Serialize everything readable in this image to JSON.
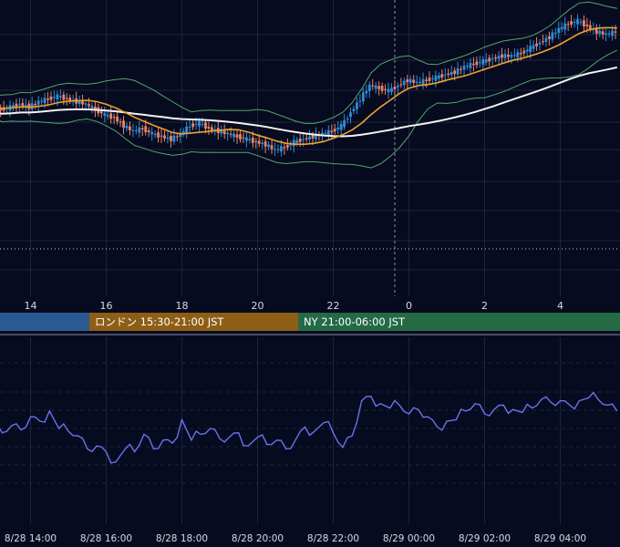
{
  "colors": {
    "background": "#070b1f",
    "grid": "#1d2340",
    "candle_up": "#2f8cd8",
    "candle_down": "#e8836a",
    "bb_band": "#4fa76a",
    "ma_short": "#f0a030",
    "ma_long": "#f2f2f2",
    "rsi_line": "#6a72ee",
    "session_tokyo": "#2b5a91",
    "session_london": "#8d5e16",
    "session_ny": "#246a45",
    "axis_text": "#d6d9e6"
  },
  "sessions": {
    "tokyo": {
      "label": ""
    },
    "london": {
      "label": "ロンドン 15:30-21:00 JST"
    },
    "ny": {
      "label": "NY 21:00-06:00 JST"
    }
  },
  "chart_data": [
    {
      "type": "candlestick",
      "title": "",
      "x_ticks": [
        "14",
        "16",
        "18",
        "20",
        "22",
        "0",
        "2",
        "4"
      ],
      "x_range_hours": [
        "13:00",
        "05:30"
      ],
      "y_range": [
        0,
        100
      ],
      "grid": true,
      "series": [
        {
          "kind": "bollinger_band"
        },
        {
          "kind": "moving_average_short"
        },
        {
          "kind": "moving_average_long"
        }
      ],
      "close": [
        [
          13.0,
          67
        ],
        [
          13.25,
          66
        ],
        [
          13.5,
          67
        ],
        [
          13.75,
          68
        ],
        [
          14.0,
          67
        ],
        [
          14.25,
          69
        ],
        [
          14.5,
          70
        ],
        [
          14.75,
          71
        ],
        [
          15.0,
          70
        ],
        [
          15.25,
          69
        ],
        [
          15.5,
          68
        ],
        [
          15.75,
          66
        ],
        [
          16.0,
          64
        ],
        [
          16.25,
          63
        ],
        [
          16.5,
          60
        ],
        [
          16.75,
          58
        ],
        [
          17.0,
          59
        ],
        [
          17.25,
          57
        ],
        [
          17.5,
          56
        ],
        [
          17.75,
          55
        ],
        [
          18.0,
          57
        ],
        [
          18.25,
          60
        ],
        [
          18.5,
          61
        ],
        [
          18.75,
          59
        ],
        [
          19.0,
          58
        ],
        [
          19.25,
          57
        ],
        [
          19.5,
          56
        ],
        [
          19.75,
          55
        ],
        [
          20.0,
          54
        ],
        [
          20.25,
          53
        ],
        [
          20.5,
          51
        ],
        [
          20.75,
          52
        ],
        [
          21.0,
          54
        ],
        [
          21.25,
          55
        ],
        [
          21.5,
          56
        ],
        [
          21.75,
          57
        ],
        [
          22.0,
          58
        ],
        [
          22.25,
          60
        ],
        [
          22.5,
          65
        ],
        [
          22.75,
          70
        ],
        [
          23.0,
          75
        ],
        [
          23.25,
          74
        ],
        [
          23.5,
          73
        ],
        [
          23.75,
          75
        ],
        [
          24.0,
          77
        ],
        [
          24.25,
          76
        ],
        [
          24.5,
          77
        ],
        [
          24.75,
          78
        ],
        [
          25.0,
          79
        ],
        [
          25.25,
          80
        ],
        [
          25.5,
          82
        ],
        [
          25.75,
          83
        ],
        [
          26.0,
          84
        ],
        [
          26.25,
          85
        ],
        [
          26.5,
          86
        ],
        [
          26.75,
          86
        ],
        [
          27.0,
          87
        ],
        [
          27.25,
          89
        ],
        [
          27.5,
          91
        ],
        [
          27.75,
          93
        ],
        [
          28.0,
          96
        ],
        [
          28.25,
          98
        ],
        [
          28.5,
          99
        ],
        [
          28.75,
          97
        ],
        [
          29.0,
          95
        ],
        [
          29.25,
          94
        ],
        [
          29.5,
          95
        ]
      ]
    },
    {
      "type": "line",
      "title": "",
      "x_ticks": [
        "8/28 14:00",
        "8/28 16:00",
        "8/28 18:00",
        "8/28 20:00",
        "8/28 22:00",
        "8/29 00:00",
        "8/29 02:00",
        "8/29 04:00"
      ],
      "y_range": [
        0,
        100
      ],
      "grid": true,
      "series": [
        {
          "kind": "oscillator"
        }
      ],
      "x": [
        13.0,
        13.25,
        13.5,
        13.75,
        14.0,
        14.25,
        14.5,
        14.75,
        15.0,
        15.25,
        15.5,
        15.75,
        16.0,
        16.25,
        16.5,
        16.75,
        17.0,
        17.25,
        17.5,
        17.75,
        18.0,
        18.25,
        18.5,
        18.75,
        19.0,
        19.25,
        19.5,
        19.75,
        20.0,
        20.25,
        20.5,
        20.75,
        21.0,
        21.25,
        21.5,
        21.75,
        22.0,
        22.25,
        22.5,
        22.75,
        23.0,
        23.25,
        23.5,
        23.75,
        24.0,
        24.25,
        24.5,
        24.75,
        25.0,
        25.25,
        25.5,
        25.75,
        26.0,
        26.25,
        26.5,
        26.75,
        27.0,
        27.25,
        27.5,
        27.75,
        28.0,
        28.25,
        28.5,
        28.75,
        29.0,
        29.25,
        29.5
      ],
      "values": [
        50,
        47,
        52,
        49,
        58,
        55,
        62,
        50,
        48,
        45,
        36,
        38,
        34,
        27,
        36,
        34,
        46,
        36,
        42,
        40,
        56,
        42,
        46,
        50,
        43,
        44,
        47,
        38,
        44,
        39,
        42,
        36,
        42,
        51,
        48,
        54,
        47,
        37,
        45,
        69,
        72,
        67,
        64,
        66,
        60,
        63,
        58,
        51,
        55,
        56,
        62,
        67,
        60,
        63,
        66,
        63,
        61,
        64,
        70,
        68,
        69,
        66,
        69,
        71,
        70,
        66,
        62
      ]
    }
  ]
}
